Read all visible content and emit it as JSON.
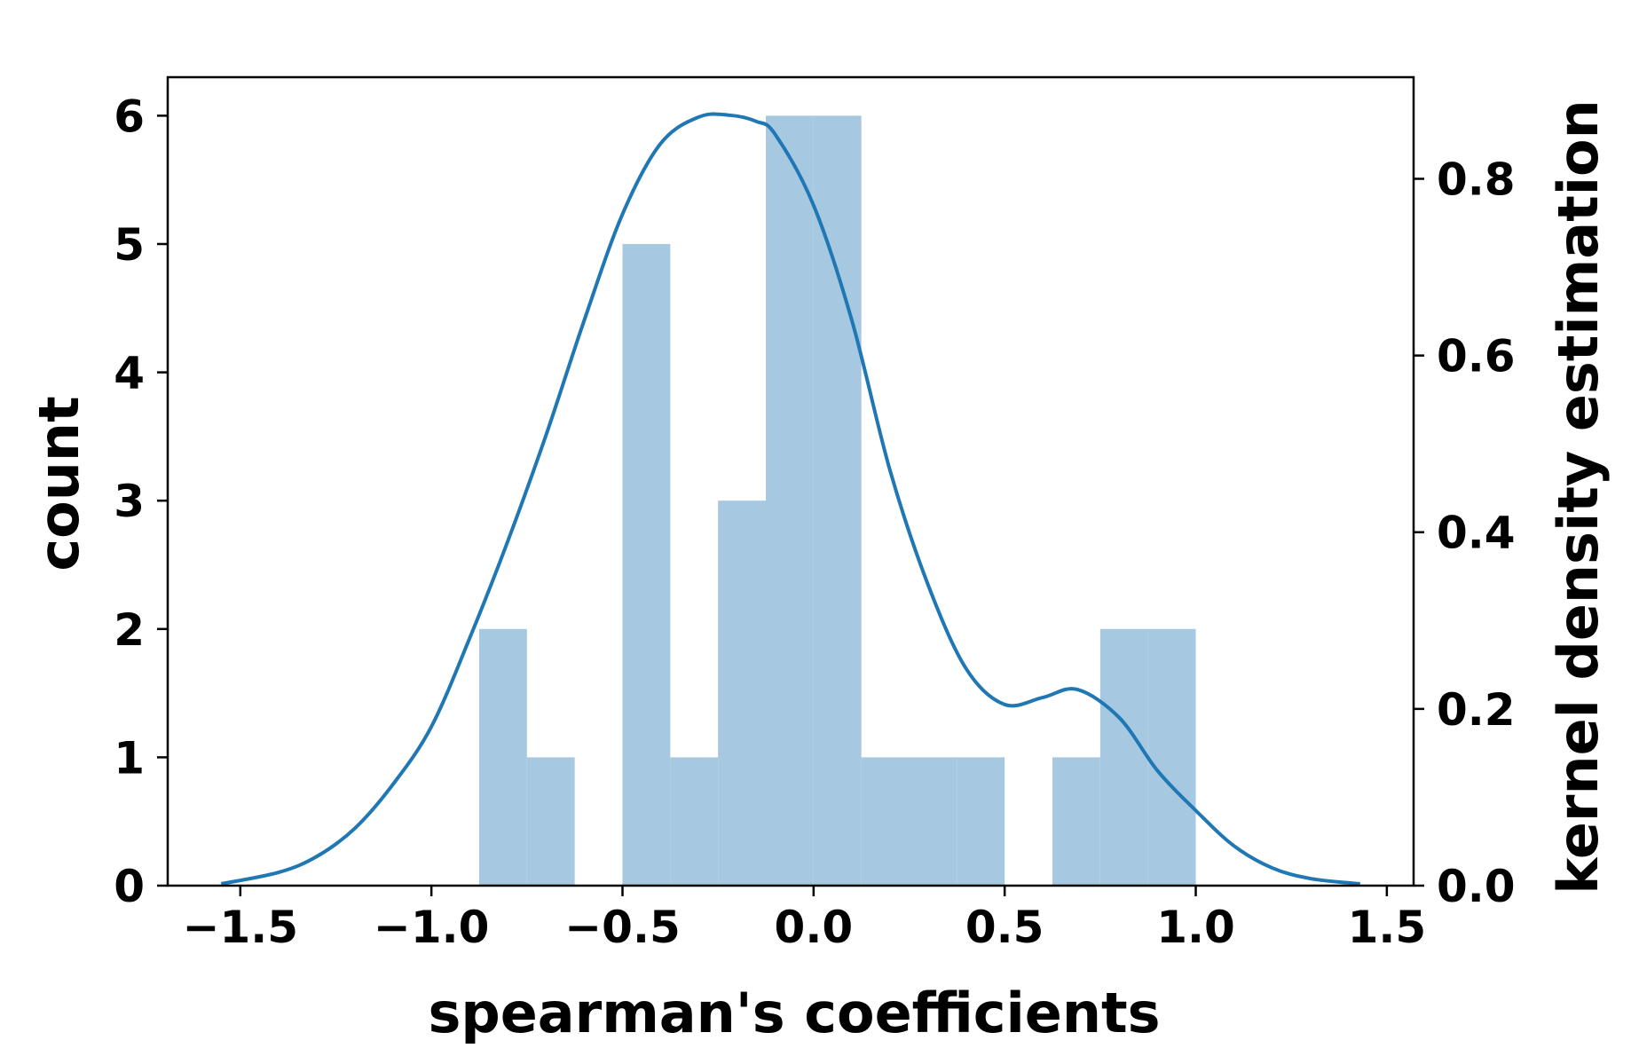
{
  "chart_data": {
    "type": "bar",
    "subtype": "histogram with kernel density estimate",
    "title": "",
    "xlabel": "spearman's coefficients",
    "ylabel": "count",
    "ylabel_right": "kernel density estimation",
    "xlim": [
      -1.69,
      1.57
    ],
    "ylim": [
      0,
      6.3
    ],
    "ylim_right": [
      0,
      0.915
    ],
    "x_ticks": [
      -1.5,
      -1.0,
      -0.5,
      0.0,
      0.5,
      1.0,
      1.5
    ],
    "x_tick_labels": [
      "−1.5",
      "−1.0",
      "−0.5",
      "0.0",
      "0.5",
      "1.0",
      "1.5"
    ],
    "y_ticks": [
      0,
      1,
      2,
      3,
      4,
      5,
      6
    ],
    "y_tick_labels": [
      "0",
      "1",
      "2",
      "3",
      "4",
      "5",
      "6"
    ],
    "y_right_ticks": [
      0.0,
      0.2,
      0.4,
      0.6,
      0.8
    ],
    "y_right_tick_labels": [
      "0.0",
      "0.2",
      "0.4",
      "0.6",
      "0.8"
    ],
    "grid": false,
    "legend": "none",
    "histogram": {
      "color": "#a6c8e0",
      "bin_edges": [
        -0.875,
        -0.75,
        -0.625,
        -0.5,
        -0.375,
        -0.25,
        -0.125,
        0.0,
        0.125,
        0.25,
        0.375,
        0.5,
        0.625,
        0.75,
        0.875,
        1.0
      ],
      "counts": [
        2,
        1,
        0,
        5,
        1,
        3,
        6,
        6,
        1,
        1,
        1,
        0,
        1,
        2,
        2
      ]
    },
    "kde": {
      "color": "#1f77b4",
      "axis": "right",
      "x": [
        -1.55,
        -1.4,
        -1.3,
        -1.2,
        -1.1,
        -1.0,
        -0.9,
        -0.8,
        -0.7,
        -0.6,
        -0.5,
        -0.4,
        -0.3,
        -0.22,
        -0.15,
        -0.1,
        0.0,
        0.1,
        0.2,
        0.3,
        0.4,
        0.5,
        0.6,
        0.69,
        0.8,
        0.9,
        1.0,
        1.1,
        1.2,
        1.3,
        1.43
      ],
      "y": [
        0.002,
        0.015,
        0.033,
        0.065,
        0.115,
        0.18,
        0.28,
        0.39,
        0.51,
        0.64,
        0.76,
        0.84,
        0.87,
        0.872,
        0.865,
        0.85,
        0.77,
        0.64,
        0.47,
        0.34,
        0.245,
        0.205,
        0.213,
        0.222,
        0.19,
        0.13,
        0.085,
        0.045,
        0.02,
        0.008,
        0.002
      ]
    }
  },
  "colors": {
    "axes": "#000000",
    "background": "#ffffff"
  }
}
